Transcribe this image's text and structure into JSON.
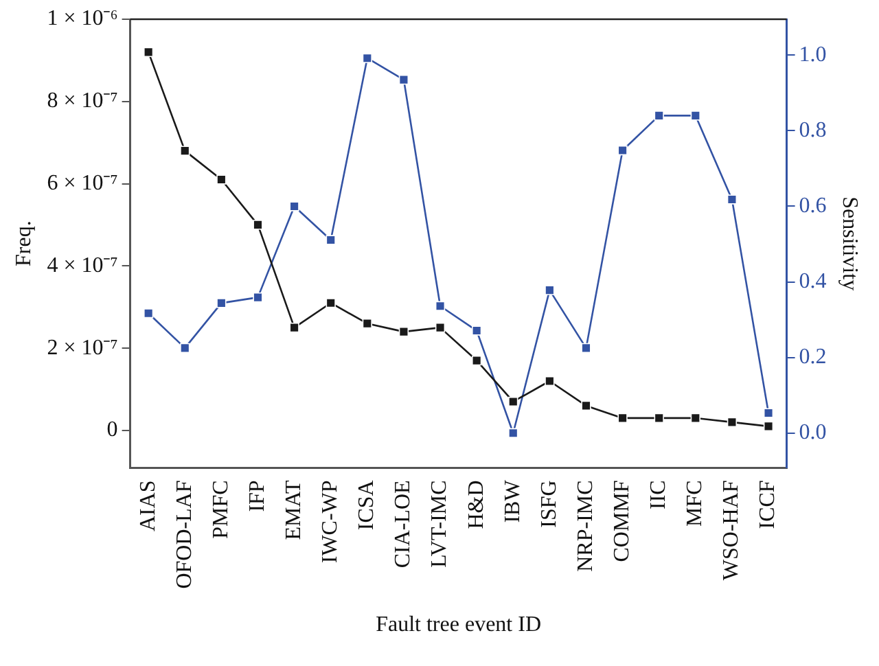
{
  "chart_data": {
    "type": "line",
    "xlabel": "Fault tree event ID",
    "ylabel": "Freq.",
    "y2label": "Sensitivity",
    "categories": [
      "AIAS",
      "OFOD-LAF",
      "PMFC",
      "IFP",
      "EMAT",
      "IWC-WP",
      "ICSA",
      "CIA-LOE",
      "LVT-IMC",
      "H&D",
      "IBW",
      "ISFG",
      "NRP-IMC",
      "COMMF",
      "IIC",
      "MFC",
      "WSO-HAF",
      "ICCF"
    ],
    "series": [
      {
        "color": "#1a1a1a",
        "values": [
          9.2e-07,
          6.8e-07,
          6.1e-07,
          5e-07,
          2.5e-07,
          3.1e-07,
          2.6e-07,
          2.4e-07,
          2.5e-07,
          1.7e-07,
          7e-08,
          1.2e-07,
          6e-08,
          3e-08,
          3e-08,
          3e-08,
          2e-08,
          1e-08
        ]
      },
      {
        "color": "#3353a4",
        "axis": "y2",
        "values": [
          0.317,
          0.225,
          0.344,
          0.359,
          0.6,
          0.511,
          0.992,
          0.935,
          0.336,
          0.271,
          0.0,
          0.378,
          0.225,
          0.748,
          0.84,
          0.84,
          0.618,
          0.053
        ]
      }
    ],
    "ylim": [
      -9.1e-08,
      1e-06
    ],
    "yticks": [
      {
        "value": 0,
        "label": "0"
      },
      {
        "value": 2e-07,
        "label": "2 × 10⁻⁷"
      },
      {
        "value": 4e-07,
        "label": "4 × 10⁻⁷"
      },
      {
        "value": 6e-07,
        "label": "6 × 10⁻⁷"
      },
      {
        "value": 8e-07,
        "label": "8 × 10⁻⁷"
      },
      {
        "value": 1e-06,
        "label": "1 × 10⁻⁶"
      }
    ],
    "y2lim": [
      -0.092,
      1.095
    ],
    "y2ticks": [
      {
        "value": 0,
        "label": "0.0"
      },
      {
        "value": 0.2,
        "label": "0.2"
      },
      {
        "value": 0.4,
        "label": "0.4"
      },
      {
        "value": 0.6,
        "label": "0.6"
      },
      {
        "value": 0.8,
        "label": "0.8"
      },
      {
        "value": 1.0,
        "label": "1.0"
      }
    ],
    "marker": "square",
    "line_style": "solid",
    "grid": false,
    "legend": false
  }
}
